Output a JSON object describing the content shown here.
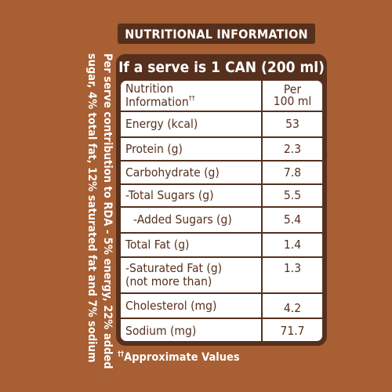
{
  "header": {
    "title": "NUTRITIONAL INFORMATION"
  },
  "side_note": {
    "line1": "Per serve contribution to RDA - 5% energy, 22% added",
    "line2": "sugar, 4% total fat, 12% saturated fat and 7% sodium"
  },
  "panel": {
    "serve_title": "If a serve is 1 CAN (200 ml)"
  },
  "table": {
    "header_label_line1": "Nutrition",
    "header_label_line2": "Information",
    "header_label_sup": "††",
    "header_value_line1": "Per",
    "header_value_line2": "100 ml",
    "rows": [
      {
        "label": "Energy (kcal)",
        "value": "53"
      },
      {
        "label": "Protein (g)",
        "value": "2.3"
      },
      {
        "label": "Carbohydrate (g)",
        "value": "7.8"
      },
      {
        "label": "-Total Sugars (g)",
        "value": "5.5"
      },
      {
        "label": "-Added Sugars (g)",
        "value": "5.4"
      },
      {
        "label": "Total Fat (g)",
        "value": "1.4"
      },
      {
        "label_line1": "-Saturated Fat (g)",
        "label_line2": "(not more than)",
        "value": "1.3"
      },
      {
        "label": "Cholesterol (mg)",
        "value": "4.2"
      },
      {
        "label": "Sodium (mg)",
        "value": "71.7"
      }
    ]
  },
  "footnote": {
    "sup": "††",
    "text": "Approximate Values"
  },
  "colors": {
    "background": "#a75f33",
    "dark_brown": "#56301d",
    "white": "#ffffff"
  }
}
